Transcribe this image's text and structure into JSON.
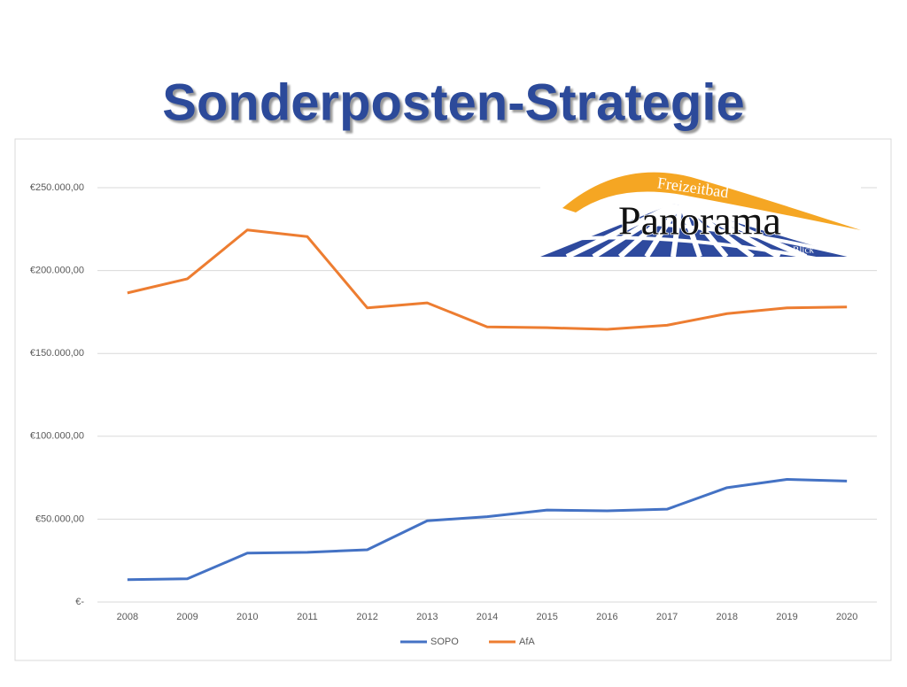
{
  "chart_data": {
    "type": "line",
    "title": "Sonderposten-Strategie",
    "categories": [
      "2008",
      "2009",
      "2010",
      "2011",
      "2012",
      "2013",
      "2014",
      "2015",
      "2016",
      "2017",
      "2018",
      "2019",
      "2020"
    ],
    "series": [
      {
        "name": "SOPO",
        "color": "#4472c4",
        "values": [
          13500,
          14000,
          29500,
          30000,
          31500,
          49000,
          51500,
          55500,
          55000,
          56000,
          69000,
          74000,
          73000
        ]
      },
      {
        "name": "AfA",
        "color": "#ed7d31",
        "values": [
          186500,
          195000,
          224500,
          220500,
          177500,
          180500,
          166000,
          165500,
          164500,
          167000,
          174000,
          177500,
          178000
        ]
      }
    ],
    "ylim": [
      0,
      250000
    ],
    "yticks": [
      {
        "value": 0,
        "label": "€-"
      },
      {
        "value": 50000,
        "label": "€50.000,00"
      },
      {
        "value": 100000,
        "label": "€100.000,00"
      },
      {
        "value": 150000,
        "label": "€150.000,00"
      },
      {
        "value": 200000,
        "label": "€200.000,00"
      },
      {
        "value": 250000,
        "label": "€250.000,00"
      }
    ],
    "grid": true,
    "legend": "bottom"
  },
  "logo": {
    "top": "Freizeitbad",
    "main": "Panorama",
    "bottom": "Blick"
  }
}
